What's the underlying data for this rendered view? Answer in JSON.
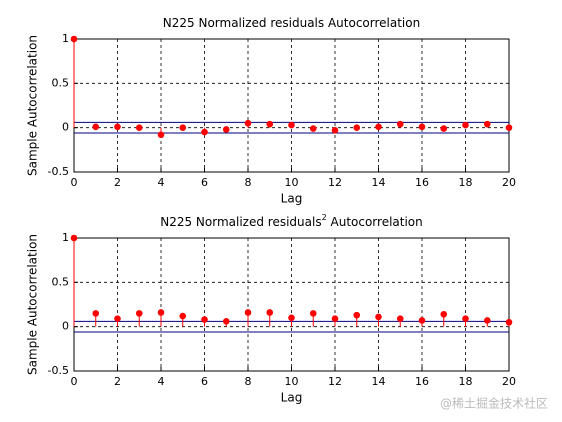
{
  "chart_data": [
    {
      "type": "stem",
      "title": {
        "text": "N225 Normalized residuals Autocorrelation"
      },
      "xlabel": "Lag",
      "ylabel": "Sample Autocorrelation",
      "x": [
        0,
        1,
        2,
        3,
        4,
        5,
        6,
        7,
        8,
        9,
        10,
        11,
        12,
        13,
        14,
        15,
        16,
        17,
        18,
        19,
        20
      ],
      "values": [
        1,
        0.01,
        0.01,
        0.0,
        -0.08,
        0.0,
        -0.05,
        -0.02,
        0.05,
        0.04,
        0.03,
        -0.01,
        -0.03,
        0.0,
        0.01,
        0.04,
        0.01,
        -0.01,
        0.03,
        0.04,
        0.0
      ],
      "color": "#ff0000",
      "confidence_bounds": [
        -0.06,
        0.06
      ],
      "bounds_color": "#000080",
      "xlim": [
        0,
        20
      ],
      "xticks": [
        0,
        2,
        4,
        6,
        8,
        10,
        12,
        14,
        16,
        18,
        20
      ],
      "ylim": [
        -0.5,
        1
      ],
      "yticks": [
        -0.5,
        0,
        0.5,
        1
      ],
      "grid": true
    },
    {
      "type": "stem",
      "title": {
        "text": "N225 Normalized residuals",
        "superscript": "2",
        "rest": " Autocorrelation"
      },
      "xlabel": "Lag",
      "ylabel": "Sample Autocorrelation",
      "x": [
        0,
        1,
        2,
        3,
        4,
        5,
        6,
        7,
        8,
        9,
        10,
        11,
        12,
        13,
        14,
        15,
        16,
        17,
        18,
        19,
        20
      ],
      "values": [
        1,
        0.15,
        0.09,
        0.15,
        0.16,
        0.12,
        0.08,
        0.06,
        0.16,
        0.16,
        0.1,
        0.15,
        0.09,
        0.13,
        0.11,
        0.09,
        0.07,
        0.14,
        0.09,
        0.07,
        0.05
      ],
      "color": "#ff0000",
      "confidence_bounds": [
        -0.06,
        0.06
      ],
      "bounds_color": "#000080",
      "xlim": [
        0,
        20
      ],
      "xticks": [
        0,
        2,
        4,
        6,
        8,
        10,
        12,
        14,
        16,
        18,
        20
      ],
      "ylim": [
        -0.5,
        1
      ],
      "yticks": [
        -0.5,
        0,
        0.5,
        1
      ],
      "grid": true
    }
  ],
  "watermark": "@稀土掘金技术社区"
}
